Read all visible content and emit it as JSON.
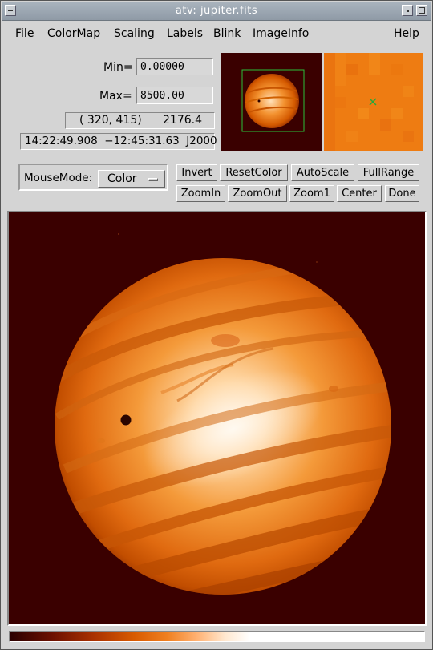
{
  "window": {
    "title": "atv: jupiter.fits"
  },
  "menu": {
    "items": [
      "File",
      "ColorMap",
      "Scaling",
      "Labels",
      "Blink",
      "ImageInfo"
    ],
    "help": "Help"
  },
  "scale": {
    "min_label": "Min=",
    "min_value": "0.00000",
    "max_label": "Max=",
    "max_value": "8500.00"
  },
  "readout": {
    "position": "( 320, 415)",
    "pixel_value": "2176.4",
    "coords": "14:22:49.908  −12:45:31.63  J2000"
  },
  "mousemode": {
    "label": "MouseMode:",
    "value": "Color"
  },
  "buttons": {
    "invert": "Invert",
    "resetcolor": "ResetColor",
    "autoscale": "AutoScale",
    "fullrange": "FullRange",
    "zoomin": "ZoomIn",
    "zoomout": "ZoomOut",
    "zoom1": "Zoom1",
    "center": "Center",
    "done": "Done"
  },
  "colors": {
    "background": "#3a0000",
    "planet_edge": "#a83000",
    "planet_mid": "#f07a10",
    "planet_light": "#ffe6c8",
    "highlight": "#29c13a"
  },
  "icons": [
    "minimize-icon",
    "maximize-icon",
    "window-menu-icon",
    "option-menu-indicator-icon",
    "cursor-marker-icon"
  ]
}
